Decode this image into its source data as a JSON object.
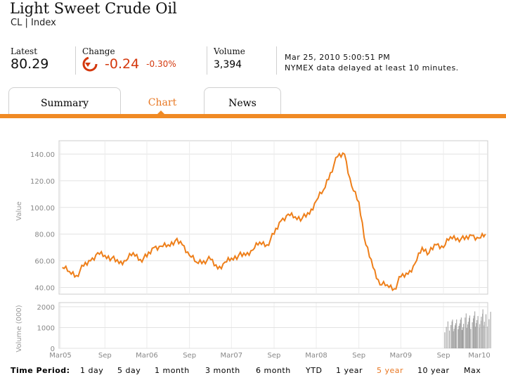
{
  "header": {
    "title": "Light Sweet Crude Oil",
    "symbol": "CL",
    "index_label": "Index"
  },
  "quote": {
    "latest_label": "Latest",
    "latest_value": "80.29",
    "change_label": "Change",
    "change_value": "-0.24",
    "change_pct": "-0.30%",
    "volume_label": "Volume",
    "volume_value": "3,394",
    "timestamp": "Mar 25, 2010 5:00:51 PM",
    "delay_note": "NYMEX data delayed at least 10 minutes."
  },
  "tabs": [
    {
      "label": "Summary",
      "active": false
    },
    {
      "label": "Chart",
      "active": true
    },
    {
      "label": "News",
      "active": false
    }
  ],
  "colors": {
    "accent": "#f08a24",
    "negative": "#d4380d",
    "line": "#ee7f1a",
    "grid": "#dddddd",
    "volume": "#999999"
  },
  "icons": {
    "change": "down-arrow-circle-icon"
  },
  "time_period": {
    "label": "Time Period:",
    "options": [
      "1 day",
      "5 day",
      "1 month",
      "3 month",
      "6 month",
      "YTD",
      "1 year",
      "5 year",
      "10 year",
      "Max"
    ],
    "selected": "5 year"
  },
  "chart_data": [
    {
      "type": "line",
      "ylabel": "Value",
      "ylim": [
        35,
        150
      ],
      "yticks": [
        "40.00",
        "60.00",
        "80.00",
        "100.00",
        "120.00",
        "140.00"
      ],
      "xticks": [
        "Mar05",
        "Sep",
        "Mar06",
        "Sep",
        "Mar07",
        "Sep",
        "Mar08",
        "Sep",
        "Mar09",
        "Sep",
        "Mar10"
      ],
      "grid": true,
      "series": [
        {
          "x": [
            "2005-03",
            "2005-04",
            "2005-05",
            "2005-06",
            "2005-07",
            "2005-08",
            "2005-09",
            "2005-10",
            "2005-11",
            "2005-12",
            "2006-01",
            "2006-02",
            "2006-03",
            "2006-04",
            "2006-05",
            "2006-06",
            "2006-07",
            "2006-08",
            "2006-09",
            "2006-10",
            "2006-11",
            "2006-12",
            "2007-01",
            "2007-02",
            "2007-03",
            "2007-04",
            "2007-05",
            "2007-06",
            "2007-07",
            "2007-08",
            "2007-09",
            "2007-10",
            "2007-11",
            "2007-12",
            "2008-01",
            "2008-02",
            "2008-03",
            "2008-04",
            "2008-05",
            "2008-06",
            "2008-07",
            "2008-08",
            "2008-09",
            "2008-10",
            "2008-11",
            "2008-12",
            "2009-01",
            "2009-02",
            "2009-03",
            "2009-04",
            "2009-05",
            "2009-06",
            "2009-07",
            "2009-08",
            "2009-09",
            "2009-10",
            "2009-11",
            "2009-12",
            "2010-01",
            "2010-02",
            "2010-03"
          ],
          "values": [
            55,
            52,
            49,
            56,
            60,
            66,
            64,
            62,
            58,
            60,
            66,
            61,
            63,
            70,
            71,
            72,
            75,
            72,
            64,
            59,
            60,
            61,
            54,
            59,
            62,
            64,
            64,
            68,
            74,
            72,
            80,
            90,
            95,
            93,
            92,
            95,
            105,
            113,
            126,
            138,
            140,
            116,
            104,
            72,
            55,
            42,
            42,
            39,
            48,
            50,
            58,
            70,
            66,
            72,
            70,
            78,
            77,
            76,
            79,
            77,
            80
          ]
        }
      ]
    },
    {
      "type": "bar",
      "ylabel": "Volume (000)",
      "ylim": [
        0,
        2200
      ],
      "yticks": [
        "0",
        "1000",
        "2000"
      ],
      "grid": true,
      "series": [
        {
          "x": [
            "2009-10",
            "2009-11",
            "2009-12",
            "2010-01",
            "2010-02",
            "2010-03"
          ],
          "values": [
            1400,
            1500,
            1600,
            1700,
            1800,
            1900
          ]
        }
      ]
    }
  ]
}
